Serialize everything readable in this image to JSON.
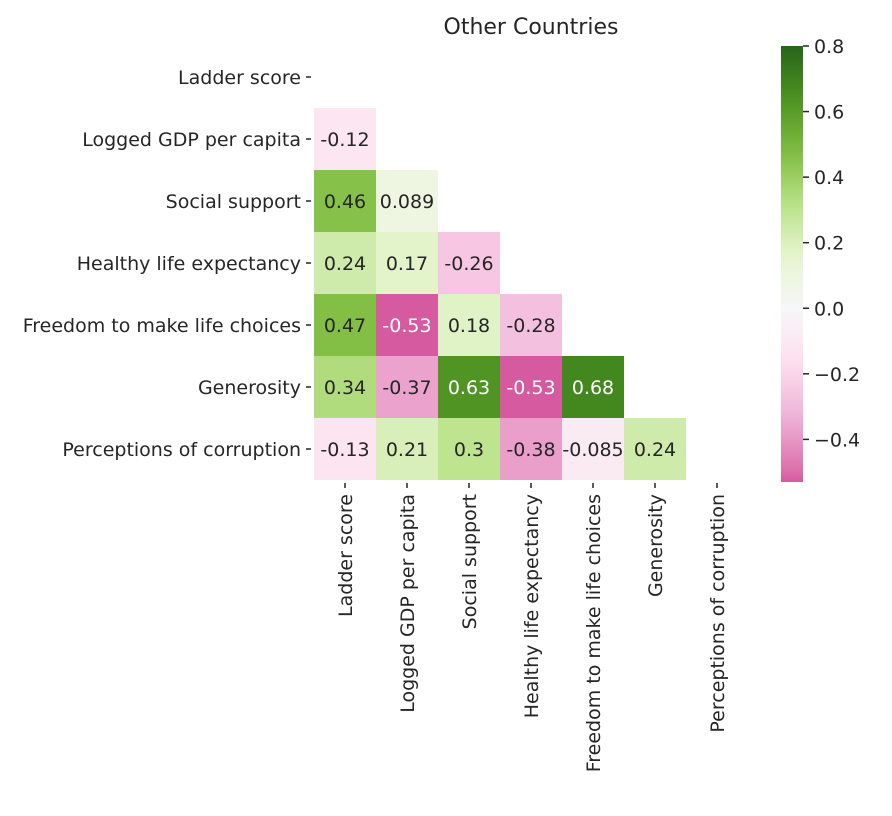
{
  "chart_data": {
    "type": "heatmap",
    "title": "Other Countries",
    "rows": [
      "Ladder score",
      "Logged GDP per capita",
      "Social support",
      "Healthy life expectancy",
      "Freedom to make life choices",
      "Generosity",
      "Perceptions of corruption"
    ],
    "columns": [
      "Ladder score",
      "Logged GDP per capita",
      "Social support",
      "Healthy life expectancy",
      "Freedom to make life choices",
      "Generosity",
      "Perceptions of corruption"
    ],
    "cells": [
      {
        "row": 1,
        "col": 0,
        "value": -0.12,
        "label": "-0.12"
      },
      {
        "row": 2,
        "col": 0,
        "value": 0.46,
        "label": "0.46"
      },
      {
        "row": 2,
        "col": 1,
        "value": 0.089,
        "label": "0.089"
      },
      {
        "row": 3,
        "col": 0,
        "value": 0.24,
        "label": "0.24"
      },
      {
        "row": 3,
        "col": 1,
        "value": 0.17,
        "label": "0.17"
      },
      {
        "row": 3,
        "col": 2,
        "value": -0.26,
        "label": "-0.26"
      },
      {
        "row": 4,
        "col": 0,
        "value": 0.47,
        "label": "0.47"
      },
      {
        "row": 4,
        "col": 1,
        "value": -0.53,
        "label": "-0.53"
      },
      {
        "row": 4,
        "col": 2,
        "value": 0.18,
        "label": "0.18"
      },
      {
        "row": 4,
        "col": 3,
        "value": -0.28,
        "label": "-0.28"
      },
      {
        "row": 5,
        "col": 0,
        "value": 0.34,
        "label": "0.34"
      },
      {
        "row": 5,
        "col": 1,
        "value": -0.37,
        "label": "-0.37"
      },
      {
        "row": 5,
        "col": 2,
        "value": 0.63,
        "label": "0.63"
      },
      {
        "row": 5,
        "col": 3,
        "value": -0.53,
        "label": "-0.53"
      },
      {
        "row": 5,
        "col": 4,
        "value": 0.68,
        "label": "0.68"
      },
      {
        "row": 6,
        "col": 0,
        "value": -0.13,
        "label": "-0.13"
      },
      {
        "row": 6,
        "col": 1,
        "value": 0.21,
        "label": "0.21"
      },
      {
        "row": 6,
        "col": 2,
        "value": 0.3,
        "label": "0.3"
      },
      {
        "row": 6,
        "col": 3,
        "value": -0.38,
        "label": "-0.38"
      },
      {
        "row": 6,
        "col": 4,
        "value": -0.085,
        "label": "-0.085"
      },
      {
        "row": 6,
        "col": 5,
        "value": 0.24,
        "label": "0.24"
      }
    ],
    "mask": "upper triangle incl. diagonal",
    "colormap": "PiYG",
    "vmin": -0.53,
    "vmax": 0.8,
    "colorbar_ticks": [
      {
        "value": 0.8,
        "label": "0.8"
      },
      {
        "value": 0.6,
        "label": "0.6"
      },
      {
        "value": 0.4,
        "label": "0.4"
      },
      {
        "value": 0.2,
        "label": "0.2"
      },
      {
        "value": 0.0,
        "label": "0.0"
      },
      {
        "value": -0.2,
        "label": "−0.2"
      },
      {
        "value": -0.4,
        "label": "−0.4"
      }
    ],
    "colors": {
      "negative_end": "#c5479b",
      "neutral": "#f7f7f7",
      "positive_end": "#3a6e2a",
      "text_dark": "#262626",
      "text_light": "#ffffff"
    }
  }
}
